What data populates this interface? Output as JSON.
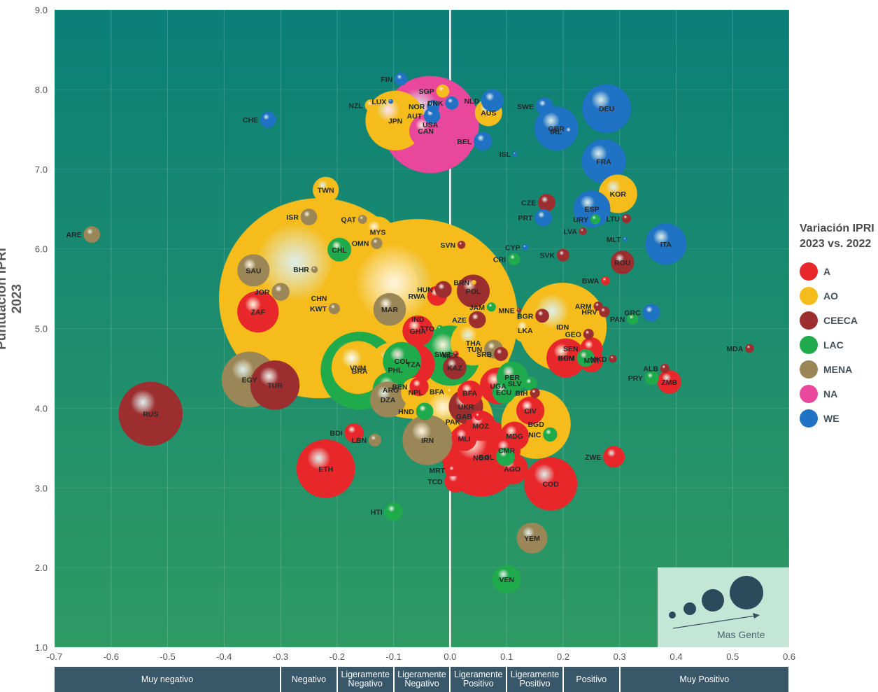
{
  "chart_data": {
    "type": "scatter",
    "subtype": "bubble",
    "ylabel": "Puntuación IPRI 2023",
    "xlim": [
      -0.7,
      0.6
    ],
    "ylim": [
      1.0,
      9.0
    ],
    "x_ticks": [
      "-0.7",
      "-0.6",
      "-0.5",
      "-0.4",
      "-0.3",
      "-0.2",
      "-0.1",
      "0.0",
      "0.1",
      "0.2",
      "0.3",
      "0.4",
      "0.5",
      "0.6"
    ],
    "y_ticks": [
      "1.0",
      "2.0",
      "3.0",
      "4.0",
      "5.0",
      "6.0",
      "7.0",
      "8.0",
      "9.0"
    ],
    "legend_title": "Variación IPRI 2023 vs. 2022",
    "legend": [
      {
        "name": "A",
        "color": "#e8272b"
      },
      {
        "name": "AO",
        "color": "#f5bc1b"
      },
      {
        "name": "CEECA",
        "color": "#9c2e30"
      },
      {
        "name": "LAC",
        "color": "#1faa4b"
      },
      {
        "name": "MENA",
        "color": "#9a8656"
      },
      {
        "name": "NA",
        "color": "#e8479b"
      },
      {
        "name": "WE",
        "color": "#1f72c4"
      }
    ],
    "categories": [
      {
        "label": "Muy negativo",
        "range": [
          -0.7,
          -0.3
        ]
      },
      {
        "label": "Negativo",
        "range": [
          -0.3,
          -0.2
        ]
      },
      {
        "label": "Ligeramente Negativo",
        "range": [
          -0.2,
          -0.1
        ]
      },
      {
        "label": "Ligeramente Negativo",
        "range": [
          -0.1,
          0.0
        ]
      },
      {
        "label": "Ligeramente Positivo",
        "range": [
          0.0,
          0.1
        ]
      },
      {
        "label": "Ligeramente Positivo",
        "range": [
          0.1,
          0.2
        ]
      },
      {
        "label": "Positivo",
        "range": [
          0.2,
          0.3
        ]
      },
      {
        "label": "Muy Positivo",
        "range": [
          0.3,
          0.6
        ]
      }
    ],
    "size_legend_label": "Mas Gente",
    "points": [
      {
        "code": "FIN",
        "x": -0.087,
        "y": 8.13,
        "group": "WE",
        "pop": 5.5
      },
      {
        "code": "SGP",
        "x": -0.013,
        "y": 7.98,
        "group": "AO",
        "pop": 5.9
      },
      {
        "code": "NZL",
        "x": -0.14,
        "y": 7.8,
        "group": "AO",
        "pop": 5.1
      },
      {
        "code": "LUX",
        "x": -0.105,
        "y": 7.85,
        "group": "WE",
        "pop": 0.6
      },
      {
        "code": "NOR",
        "x": -0.03,
        "y": 7.79,
        "group": "WE",
        "pop": 5.4
      },
      {
        "code": "DNK",
        "x": 0.003,
        "y": 7.83,
        "group": "WE",
        "pop": 5.9
      },
      {
        "code": "NLD",
        "x": 0.075,
        "y": 7.86,
        "group": "WE",
        "pop": 17.5
      },
      {
        "code": "AUT",
        "x": -0.032,
        "y": 7.67,
        "group": "WE",
        "pop": 9.0
      },
      {
        "code": "AUS",
        "x": 0.068,
        "y": 7.71,
        "group": "AO",
        "pop": 26
      },
      {
        "code": "SWE",
        "x": 0.167,
        "y": 7.79,
        "group": "WE",
        "pop": 10.4
      },
      {
        "code": "DEU",
        "x": 0.277,
        "y": 7.76,
        "group": "WE",
        "pop": 83
      },
      {
        "code": "CHE",
        "x": -0.322,
        "y": 7.62,
        "group": "WE",
        "pop": 8.7
      },
      {
        "code": "JPN",
        "x": -0.097,
        "y": 7.61,
        "group": "AO",
        "pop": 125
      },
      {
        "code": "USA",
        "x": -0.035,
        "y": 7.56,
        "group": "NA",
        "pop": 333
      },
      {
        "code": "CAN",
        "x": -0.043,
        "y": 7.48,
        "group": "NA",
        "pop": 38
      },
      {
        "code": "GBR",
        "x": 0.188,
        "y": 7.51,
        "group": "WE",
        "pop": 67
      },
      {
        "code": "IRL",
        "x": 0.212,
        "y": 7.47,
        "group": "WE",
        "pop": 5.0
      },
      {
        "code": "BEL",
        "x": 0.058,
        "y": 7.35,
        "group": "WE",
        "pop": 11.6
      },
      {
        "code": "ISL",
        "x": 0.115,
        "y": 7.19,
        "group": "WE",
        "pop": 0.37
      },
      {
        "code": "FRA",
        "x": 0.272,
        "y": 7.1,
        "group": "WE",
        "pop": 68
      },
      {
        "code": "TWN",
        "x": -0.22,
        "y": 6.74,
        "group": "AO",
        "pop": 23.6
      },
      {
        "code": "KOR",
        "x": 0.297,
        "y": 6.69,
        "group": "AO",
        "pop": 51.7
      },
      {
        "code": "CZE",
        "x": 0.171,
        "y": 6.58,
        "group": "CEECA",
        "pop": 10.5
      },
      {
        "code": "ESP",
        "x": 0.251,
        "y": 6.5,
        "group": "WE",
        "pop": 47.4
      },
      {
        "code": "ISR",
        "x": -0.25,
        "y": 6.4,
        "group": "MENA",
        "pop": 9.4
      },
      {
        "code": "QAT",
        "x": -0.155,
        "y": 6.37,
        "group": "MENA",
        "pop": 2.7
      },
      {
        "code": "PRT",
        "x": 0.165,
        "y": 6.39,
        "group": "WE",
        "pop": 10.3
      },
      {
        "code": "URY",
        "x": 0.257,
        "y": 6.37,
        "group": "LAC",
        "pop": 3.4
      },
      {
        "code": "LTU",
        "x": 0.312,
        "y": 6.38,
        "group": "CEECA",
        "pop": 2.8
      },
      {
        "code": "ARE",
        "x": -0.634,
        "y": 6.18,
        "group": "MENA",
        "pop": 9.4
      },
      {
        "code": "MYS",
        "x": -0.128,
        "y": 6.21,
        "group": "AO",
        "pop": 33.6
      },
      {
        "code": "LVA",
        "x": 0.235,
        "y": 6.22,
        "group": "CEECA",
        "pop": 1.9
      },
      {
        "code": "MLT",
        "x": 0.31,
        "y": 6.12,
        "group": "WE",
        "pop": 0.52
      },
      {
        "code": "ITA",
        "x": 0.382,
        "y": 6.06,
        "group": "WE",
        "pop": 59
      },
      {
        "code": "SVN",
        "x": 0.02,
        "y": 6.05,
        "group": "CEECA",
        "pop": 2.1
      },
      {
        "code": "CYP",
        "x": 0.133,
        "y": 6.02,
        "group": "WE",
        "pop": 1.2
      },
      {
        "code": "CHL",
        "x": -0.196,
        "y": 5.99,
        "group": "LAC",
        "pop": 19.5
      },
      {
        "code": "OMN",
        "x": -0.13,
        "y": 6.07,
        "group": "MENA",
        "pop": 4.5
      },
      {
        "code": "SVK",
        "x": 0.2,
        "y": 5.92,
        "group": "CEECA",
        "pop": 5.4
      },
      {
        "code": "CRI",
        "x": 0.113,
        "y": 5.87,
        "group": "LAC",
        "pop": 5.2
      },
      {
        "code": "ROU",
        "x": 0.305,
        "y": 5.83,
        "group": "CEECA",
        "pop": 19
      },
      {
        "code": "SAU",
        "x": -0.348,
        "y": 5.73,
        "group": "MENA",
        "pop": 36
      },
      {
        "code": "BHR",
        "x": -0.24,
        "y": 5.74,
        "group": "MENA",
        "pop": 1.5
      },
      {
        "code": "CHN",
        "x": -0.232,
        "y": 5.38,
        "group": "AO",
        "pop": 1412
      },
      {
        "code": "JOR",
        "x": -0.3,
        "y": 5.46,
        "group": "MENA",
        "pop": 11
      },
      {
        "code": "BWA",
        "x": 0.275,
        "y": 5.6,
        "group": "A",
        "pop": 2.6
      },
      {
        "code": "BRN",
        "x": 0.042,
        "y": 5.58,
        "group": "AO",
        "pop": 0.45
      },
      {
        "code": "HUN",
        "x": -0.012,
        "y": 5.49,
        "group": "CEECA",
        "pop": 9.7
      },
      {
        "code": "POL",
        "x": 0.041,
        "y": 5.47,
        "group": "CEECA",
        "pop": 37.7
      },
      {
        "code": "RWA",
        "x": -0.023,
        "y": 5.41,
        "group": "A",
        "pop": 13.5
      },
      {
        "code": "KWT",
        "x": -0.205,
        "y": 5.25,
        "group": "MENA",
        "pop": 4.3
      },
      {
        "code": "ARM",
        "x": 0.262,
        "y": 5.28,
        "group": "CEECA",
        "pop": 2.8
      },
      {
        "code": "HRV",
        "x": 0.273,
        "y": 5.21,
        "group": "CEECA",
        "pop": 3.9
      },
      {
        "code": "GRC",
        "x": 0.356,
        "y": 5.2,
        "group": "WE",
        "pop": 10.4
      },
      {
        "code": "JAM",
        "x": 0.073,
        "y": 5.27,
        "group": "LAC",
        "pop": 2.8
      },
      {
        "code": "MNE",
        "x": 0.122,
        "y": 5.23,
        "group": "CEECA",
        "pop": 0.62
      },
      {
        "code": "BGR",
        "x": 0.163,
        "y": 5.16,
        "group": "CEECA",
        "pop": 6.5
      },
      {
        "code": "ZAF",
        "x": -0.34,
        "y": 5.21,
        "group": "A",
        "pop": 60
      },
      {
        "code": "IND",
        "x": -0.057,
        "y": 5.12,
        "group": "AO",
        "pop": 1408
      },
      {
        "code": "MAR",
        "x": -0.107,
        "y": 5.24,
        "group": "MENA",
        "pop": 37
      },
      {
        "code": "PAN",
        "x": 0.323,
        "y": 5.12,
        "group": "LAC",
        "pop": 4.4
      },
      {
        "code": "AZE",
        "x": 0.048,
        "y": 5.11,
        "group": "CEECA",
        "pop": 10.1
      },
      {
        "code": "LKA",
        "x": 0.133,
        "y": 4.98,
        "group": "AO",
        "pop": 22
      },
      {
        "code": "IDN",
        "x": 0.199,
        "y": 5.02,
        "group": "AO",
        "pop": 274
      },
      {
        "code": "GEO",
        "x": 0.245,
        "y": 4.93,
        "group": "CEECA",
        "pop": 3.7
      },
      {
        "code": "GHA",
        "x": -0.057,
        "y": 4.97,
        "group": "A",
        "pop": 33
      },
      {
        "code": "TTO",
        "x": -0.018,
        "y": 5.0,
        "group": "LAC",
        "pop": 1.5
      },
      {
        "code": "THA",
        "x": 0.041,
        "y": 4.82,
        "group": "AO",
        "pop": 71.6
      },
      {
        "code": "TUN",
        "x": 0.077,
        "y": 4.74,
        "group": "MENA",
        "pop": 12.3
      },
      {
        "code": "MEX",
        "x": 0.0,
        "y": 4.66,
        "group": "LAC",
        "pop": 127
      },
      {
        "code": "MDA",
        "x": 0.53,
        "y": 4.75,
        "group": "CEECA",
        "pop": 2.6
      },
      {
        "code": "SEN",
        "x": 0.25,
        "y": 4.75,
        "group": "A",
        "pop": 17
      },
      {
        "code": "MKD",
        "x": 0.288,
        "y": 4.62,
        "group": "CEECA",
        "pop": 2.1
      },
      {
        "code": "SRB",
        "x": 0.09,
        "y": 4.68,
        "group": "CEECA",
        "pop": 6.7
      },
      {
        "code": "KEN",
        "x": 0.205,
        "y": 4.63,
        "group": "A",
        "pop": 53
      },
      {
        "code": "DOM",
        "x": 0.24,
        "y": 4.63,
        "group": "LAC",
        "pop": 11
      },
      {
        "code": "MWI",
        "x": 0.25,
        "y": 4.6,
        "group": "A",
        "pop": 19.9
      },
      {
        "code": "ALB",
        "x": 0.38,
        "y": 4.5,
        "group": "CEECA",
        "pop": 2.8
      },
      {
        "code": "COL",
        "x": -0.085,
        "y": 4.59,
        "group": "LAC",
        "pop": 51.5
      },
      {
        "code": "SWZ",
        "x": 0.01,
        "y": 4.68,
        "group": "A",
        "pop": 1.2
      },
      {
        "code": "VNM",
        "x": -0.163,
        "y": 4.51,
        "group": "AO",
        "pop": 98
      },
      {
        "code": "PHL",
        "x": -0.097,
        "y": 4.48,
        "group": "AO",
        "pop": 113
      },
      {
        "code": "BRA",
        "x": -0.16,
        "y": 4.47,
        "group": "LAC",
        "pop": 214
      },
      {
        "code": "TZA",
        "x": -0.065,
        "y": 4.55,
        "group": "A",
        "pop": 63.6
      },
      {
        "code": "KAZ",
        "x": 0.008,
        "y": 4.51,
        "group": "CEECA",
        "pop": 19.4
      },
      {
        "code": "UGA",
        "x": 0.085,
        "y": 4.28,
        "group": "A",
        "pop": 47
      },
      {
        "code": "PER",
        "x": 0.11,
        "y": 4.39,
        "group": "LAC",
        "pop": 33.7
      },
      {
        "code": "PRY",
        "x": 0.357,
        "y": 4.38,
        "group": "LAC",
        "pop": 6.7
      },
      {
        "code": "ZMB",
        "x": 0.388,
        "y": 4.33,
        "group": "A",
        "pop": 19.5
      },
      {
        "code": "SLV",
        "x": 0.142,
        "y": 4.31,
        "group": "LAC",
        "pop": 6.3
      },
      {
        "code": "ECU",
        "x": 0.095,
        "y": 4.2,
        "group": "LAC",
        "pop": 18
      },
      {
        "code": "BIH",
        "x": 0.15,
        "y": 4.19,
        "group": "CEECA",
        "pop": 3.3
      },
      {
        "code": "ARG",
        "x": -0.105,
        "y": 4.23,
        "group": "LAC",
        "pop": 45.8
      },
      {
        "code": "DZA",
        "x": -0.11,
        "y": 4.11,
        "group": "MENA",
        "pop": 44.9
      },
      {
        "code": "BEN",
        "x": -0.055,
        "y": 4.27,
        "group": "A",
        "pop": 12.5
      },
      {
        "code": "BFA",
        "x": 0.0,
        "y": 4.21,
        "group": "AO",
        "pop": 2.0
      },
      {
        "code": "NPL",
        "x": -0.061,
        "y": 4.2,
        "group": "AO",
        "pop": 30
      },
      {
        "code": "BFA",
        "x": 0.035,
        "y": 4.19,
        "group": "A",
        "pop": 22
      },
      {
        "code": "UKR",
        "x": 0.028,
        "y": 4.02,
        "group": "CEECA",
        "pop": 41
      },
      {
        "code": "CIV",
        "x": 0.142,
        "y": 3.97,
        "group": "A",
        "pop": 27.5
      },
      {
        "code": "GAB",
        "x": 0.05,
        "y": 3.9,
        "group": "A",
        "pop": 2.3
      },
      {
        "code": "HND",
        "x": -0.045,
        "y": 3.96,
        "group": "LAC",
        "pop": 10.3
      },
      {
        "code": "PAK",
        "x": 0.005,
        "y": 3.83,
        "group": "AO",
        "pop": 231
      },
      {
        "code": "BGD",
        "x": 0.152,
        "y": 3.8,
        "group": "AO",
        "pop": 169
      },
      {
        "code": "MOZ",
        "x": 0.054,
        "y": 3.78,
        "group": "A",
        "pop": 32
      },
      {
        "code": "MDG",
        "x": 0.114,
        "y": 3.65,
        "group": "A",
        "pop": 29
      },
      {
        "code": "NIC",
        "x": 0.177,
        "y": 3.67,
        "group": "LAC",
        "pop": 6.9
      },
      {
        "code": "BDI",
        "x": -0.17,
        "y": 3.69,
        "group": "A",
        "pop": 12.6
      },
      {
        "code": "LBN",
        "x": -0.133,
        "y": 3.6,
        "group": "MENA",
        "pop": 5.5
      },
      {
        "code": "IRN",
        "x": -0.04,
        "y": 3.6,
        "group": "MENA",
        "pop": 88
      },
      {
        "code": "MLI",
        "x": 0.025,
        "y": 3.62,
        "group": "A",
        "pop": 21.9
      },
      {
        "code": "CMR",
        "x": 0.1,
        "y": 3.47,
        "group": "A",
        "pop": 27.2
      },
      {
        "code": "BOL",
        "x": 0.098,
        "y": 3.39,
        "group": "LAC",
        "pop": 12
      },
      {
        "code": "NGA",
        "x": 0.055,
        "y": 3.38,
        "group": "A",
        "pop": 213
      },
      {
        "code": "ZWE",
        "x": 0.29,
        "y": 3.39,
        "group": "A",
        "pop": 16
      },
      {
        "code": "ETH",
        "x": -0.22,
        "y": 3.24,
        "group": "A",
        "pop": 120
      },
      {
        "code": "MRT",
        "x": 0.005,
        "y": 3.22,
        "group": "A",
        "pop": 4.7
      },
      {
        "code": "AGO",
        "x": 0.11,
        "y": 3.24,
        "group": "A",
        "pop": 34.5
      },
      {
        "code": "TCD",
        "x": 0.01,
        "y": 3.08,
        "group": "A",
        "pop": 17
      },
      {
        "code": "COD",
        "x": 0.178,
        "y": 3.05,
        "group": "A",
        "pop": 99
      },
      {
        "code": "RUS",
        "x": -0.53,
        "y": 3.93,
        "group": "CEECA",
        "pop": 144
      },
      {
        "code": "EGY",
        "x": -0.355,
        "y": 4.36,
        "group": "MENA",
        "pop": 109
      },
      {
        "code": "TUR",
        "x": -0.31,
        "y": 4.29,
        "group": "CEECA",
        "pop": 85
      },
      {
        "code": "HTI",
        "x": -0.1,
        "y": 2.7,
        "group": "LAC",
        "pop": 11.5
      },
      {
        "code": "YEM",
        "x": 0.145,
        "y": 2.37,
        "group": "MENA",
        "pop": 33
      },
      {
        "code": "VEN",
        "x": 0.1,
        "y": 1.85,
        "group": "LAC",
        "pop": 28
      }
    ]
  }
}
